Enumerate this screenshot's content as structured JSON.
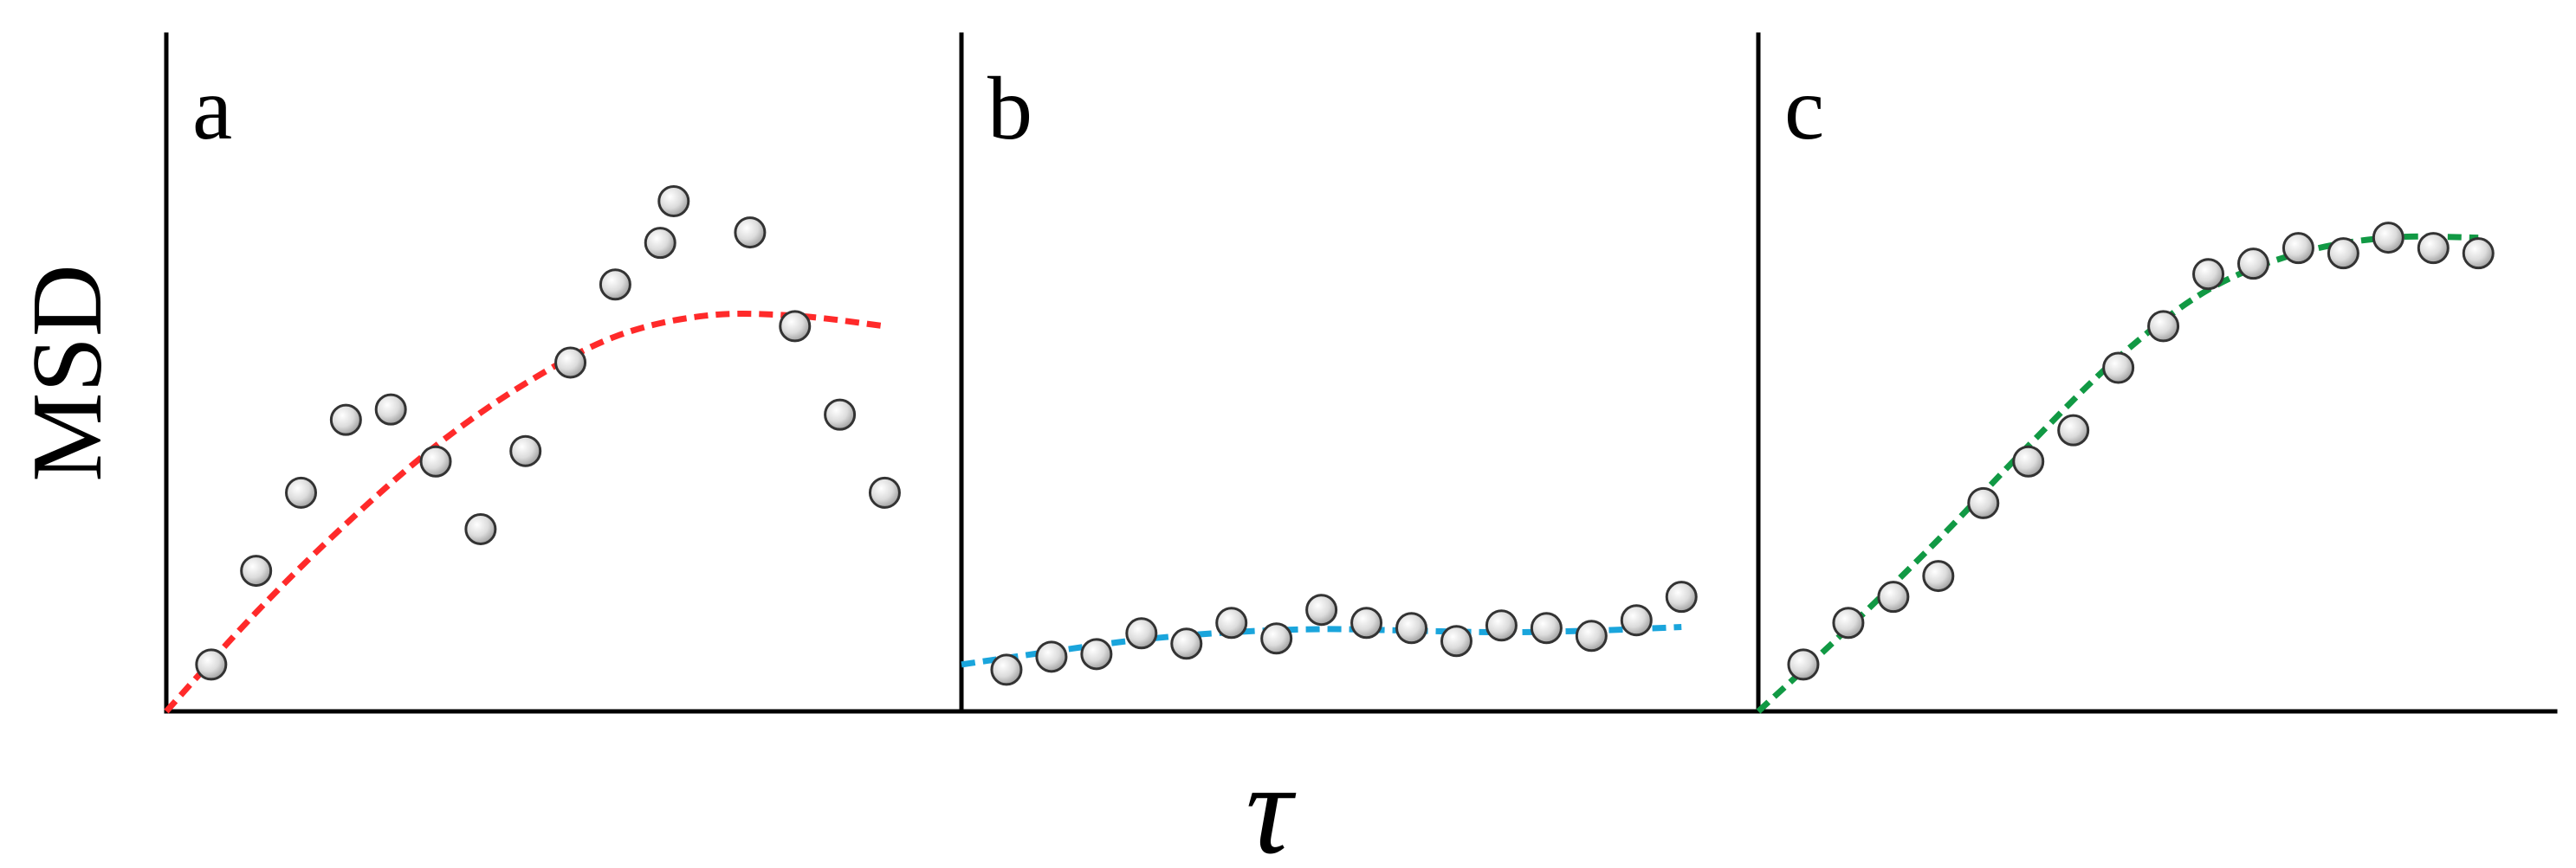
{
  "chart_data": {
    "type": "scatter",
    "xlabel": "τ",
    "ylabel": "MSD",
    "xlim": [
      0,
      17
    ],
    "ylim": [
      0,
      13
    ],
    "grid": false,
    "panels": [
      {
        "label": "a",
        "fit_color": "#ff2a2a",
        "points": [
          {
            "x": 1,
            "y": 0.9
          },
          {
            "x": 2,
            "y": 2.7
          },
          {
            "x": 3,
            "y": 4.2
          },
          {
            "x": 4,
            "y": 5.6
          },
          {
            "x": 5,
            "y": 5.8
          },
          {
            "x": 6,
            "y": 4.8
          },
          {
            "x": 7,
            "y": 3.5
          },
          {
            "x": 8,
            "y": 5.0
          },
          {
            "x": 9,
            "y": 6.7
          },
          {
            "x": 10,
            "y": 8.2
          },
          {
            "x": 11,
            "y": 9.0
          },
          {
            "x": 11.3,
            "y": 9.8
          },
          {
            "x": 13,
            "y": 9.2
          },
          {
            "x": 14,
            "y": 7.4
          },
          {
            "x": 15,
            "y": 5.7
          },
          {
            "x": 16,
            "y": 4.2
          }
        ],
        "fit": [
          {
            "x": 0,
            "y": 0
          },
          {
            "x": 2,
            "y": 1.9
          },
          {
            "x": 4,
            "y": 3.6
          },
          {
            "x": 6,
            "y": 5.1
          },
          {
            "x": 8,
            "y": 6.3
          },
          {
            "x": 10,
            "y": 7.2
          },
          {
            "x": 12,
            "y": 7.6
          },
          {
            "x": 14,
            "y": 7.6
          },
          {
            "x": 16,
            "y": 7.4
          }
        ]
      },
      {
        "label": "b",
        "fit_color": "#1aa5dc",
        "points": [
          {
            "x": 1,
            "y": 0.8
          },
          {
            "x": 2,
            "y": 1.05
          },
          {
            "x": 3,
            "y": 1.1
          },
          {
            "x": 4,
            "y": 1.5
          },
          {
            "x": 5,
            "y": 1.3
          },
          {
            "x": 6,
            "y": 1.7
          },
          {
            "x": 7,
            "y": 1.4
          },
          {
            "x": 8,
            "y": 1.95
          },
          {
            "x": 9,
            "y": 1.7
          },
          {
            "x": 10,
            "y": 1.6
          },
          {
            "x": 11,
            "y": 1.35
          },
          {
            "x": 12,
            "y": 1.65
          },
          {
            "x": 13,
            "y": 1.6
          },
          {
            "x": 14,
            "y": 1.45
          },
          {
            "x": 15,
            "y": 1.75
          },
          {
            "x": 16,
            "y": 2.2
          }
        ],
        "fit": [
          {
            "x": 0,
            "y": 0.9
          },
          {
            "x": 2,
            "y": 1.15
          },
          {
            "x": 4,
            "y": 1.38
          },
          {
            "x": 6,
            "y": 1.52
          },
          {
            "x": 8,
            "y": 1.58
          },
          {
            "x": 10,
            "y": 1.55
          },
          {
            "x": 12,
            "y": 1.52
          },
          {
            "x": 14,
            "y": 1.55
          },
          {
            "x": 16,
            "y": 1.62
          }
        ]
      },
      {
        "label": "c",
        "fit_color": "#119944",
        "points": [
          {
            "x": 1,
            "y": 0.9
          },
          {
            "x": 2,
            "y": 1.7
          },
          {
            "x": 3,
            "y": 2.2
          },
          {
            "x": 4,
            "y": 2.6
          },
          {
            "x": 5,
            "y": 4.0
          },
          {
            "x": 6,
            "y": 4.8
          },
          {
            "x": 7,
            "y": 5.4
          },
          {
            "x": 8,
            "y": 6.6
          },
          {
            "x": 9,
            "y": 7.4
          },
          {
            "x": 10,
            "y": 8.4
          },
          {
            "x": 11,
            "y": 8.6
          },
          {
            "x": 12,
            "y": 8.9
          },
          {
            "x": 13,
            "y": 8.8
          },
          {
            "x": 14,
            "y": 9.1
          },
          {
            "x": 15,
            "y": 8.9
          },
          {
            "x": 16,
            "y": 8.8
          }
        ],
        "fit": [
          {
            "x": 0,
            "y": 0
          },
          {
            "x": 2,
            "y": 1.6
          },
          {
            "x": 4,
            "y": 3.3
          },
          {
            "x": 6,
            "y": 5.1
          },
          {
            "x": 8,
            "y": 6.8
          },
          {
            "x": 10,
            "y": 8.1
          },
          {
            "x": 12,
            "y": 8.8
          },
          {
            "x": 14,
            "y": 9.1
          },
          {
            "x": 16,
            "y": 9.1
          }
        ]
      }
    ]
  }
}
